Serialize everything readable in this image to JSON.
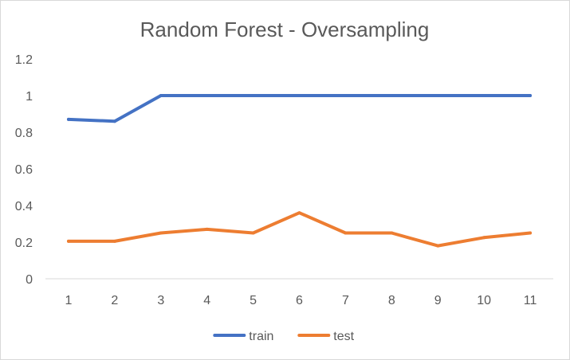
{
  "chart_data": {
    "type": "line",
    "title": "Random Forest - Oversampling",
    "xlabel": "",
    "ylabel": "",
    "categories": [
      "1",
      "2",
      "3",
      "4",
      "5",
      "6",
      "7",
      "8",
      "9",
      "10",
      "11"
    ],
    "y_ticks": [
      "0",
      "0.2",
      "0.4",
      "0.6",
      "0.8",
      "1",
      "1.2"
    ],
    "ylim": [
      0,
      1.2
    ],
    "grid": false,
    "legend_position": "bottom",
    "series": [
      {
        "name": "train",
        "color": "#4472c4",
        "values": [
          0.87,
          0.86,
          1.0,
          1.0,
          1.0,
          1.0,
          1.0,
          1.0,
          1.0,
          1.0,
          1.0
        ]
      },
      {
        "name": "test",
        "color": "#ed7d31",
        "values": [
          0.205,
          0.205,
          0.25,
          0.27,
          0.25,
          0.36,
          0.25,
          0.25,
          0.18,
          0.225,
          0.25
        ]
      }
    ]
  }
}
